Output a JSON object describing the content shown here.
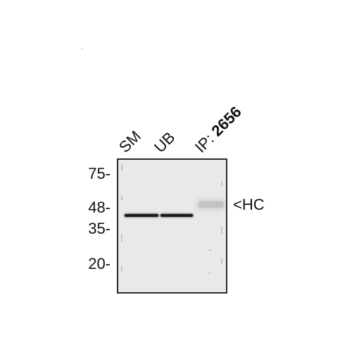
{
  "lanes": {
    "sm": "SM",
    "ub": "UB",
    "ip_prefix": "IP:",
    "ip_number": "2656"
  },
  "markers": {
    "mw_75": "75-",
    "mw_48": "48-",
    "mw_35": "35-",
    "mw_20": "20-"
  },
  "annotation": {
    "hc": "<HC"
  },
  "colors": {
    "membrane": "#e9e9e9",
    "band": "#1b1b1b",
    "frame": "#2a2a2a"
  }
}
